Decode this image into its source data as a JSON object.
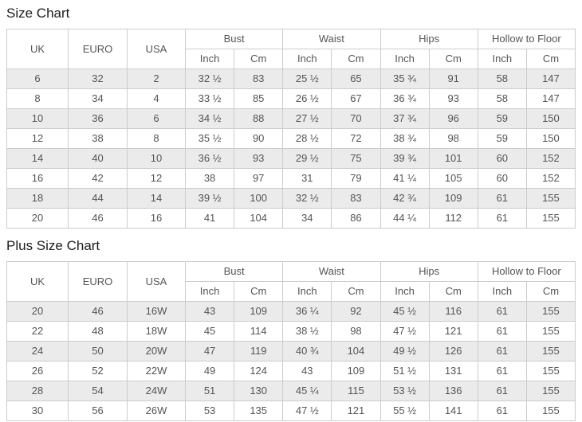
{
  "colors": {
    "border": "#cccccc",
    "stripe": "#ebebeb",
    "text": "#555555",
    "title": "#1c1c1c",
    "background": "#ffffff"
  },
  "tables": [
    {
      "name": "size-chart",
      "title": "Size Chart",
      "plain_headers": [
        "UK",
        "EURO",
        "USA"
      ],
      "group_headers": [
        {
          "label": "Bust",
          "sub": [
            "Inch",
            "Cm"
          ]
        },
        {
          "label": "Waist",
          "sub": [
            "Inch",
            "Cm"
          ]
        },
        {
          "label": "Hips",
          "sub": [
            "Inch",
            "Cm"
          ]
        },
        {
          "label": "Hollow to Floor",
          "sub": [
            "Inch",
            "Cm"
          ]
        }
      ],
      "rows": [
        [
          "6",
          "32",
          "2",
          "32 ½",
          "83",
          "25 ½",
          "65",
          "35 ¾",
          "91",
          "58",
          "147"
        ],
        [
          "8",
          "34",
          "4",
          "33 ½",
          "85",
          "26 ½",
          "67",
          "36 ¾",
          "93",
          "58",
          "147"
        ],
        [
          "10",
          "36",
          "6",
          "34 ½",
          "88",
          "27 ½",
          "70",
          "37 ¾",
          "96",
          "59",
          "150"
        ],
        [
          "12",
          "38",
          "8",
          "35 ½",
          "90",
          "28 ½",
          "72",
          "38 ¾",
          "98",
          "59",
          "150"
        ],
        [
          "14",
          "40",
          "10",
          "36 ½",
          "93",
          "29 ½",
          "75",
          "39 ¾",
          "101",
          "60",
          "152"
        ],
        [
          "16",
          "42",
          "12",
          "38",
          "97",
          "31",
          "79",
          "41 ¼",
          "105",
          "60",
          "152"
        ],
        [
          "18",
          "44",
          "14",
          "39 ½",
          "100",
          "32 ½",
          "83",
          "42 ¾",
          "109",
          "61",
          "155"
        ],
        [
          "20",
          "46",
          "16",
          "41",
          "104",
          "34",
          "86",
          "44 ¼",
          "112",
          "61",
          "155"
        ]
      ]
    },
    {
      "name": "plus-size-chart",
      "title": "Plus Size Chart",
      "plain_headers": [
        "UK",
        "EURO",
        "USA"
      ],
      "group_headers": [
        {
          "label": "Bust",
          "sub": [
            "Inch",
            "Cm"
          ]
        },
        {
          "label": "Waist",
          "sub": [
            "Inch",
            "Cm"
          ]
        },
        {
          "label": "Hips",
          "sub": [
            "Inch",
            "Cm"
          ]
        },
        {
          "label": "Hollow to Floor",
          "sub": [
            "Inch",
            "Cm"
          ]
        }
      ],
      "rows": [
        [
          "20",
          "46",
          "16W",
          "43",
          "109",
          "36 ¼",
          "92",
          "45 ½",
          "116",
          "61",
          "155"
        ],
        [
          "22",
          "48",
          "18W",
          "45",
          "114",
          "38 ½",
          "98",
          "47 ½",
          "121",
          "61",
          "155"
        ],
        [
          "24",
          "50",
          "20W",
          "47",
          "119",
          "40 ¾",
          "104",
          "49 ½",
          "126",
          "61",
          "155"
        ],
        [
          "26",
          "52",
          "22W",
          "49",
          "124",
          "43",
          "109",
          "51 ½",
          "131",
          "61",
          "155"
        ],
        [
          "28",
          "54",
          "24W",
          "51",
          "130",
          "45 ¼",
          "115",
          "53 ½",
          "136",
          "61",
          "155"
        ],
        [
          "30",
          "56",
          "26W",
          "53",
          "135",
          "47 ½",
          "121",
          "55 ½",
          "141",
          "61",
          "155"
        ]
      ]
    }
  ]
}
